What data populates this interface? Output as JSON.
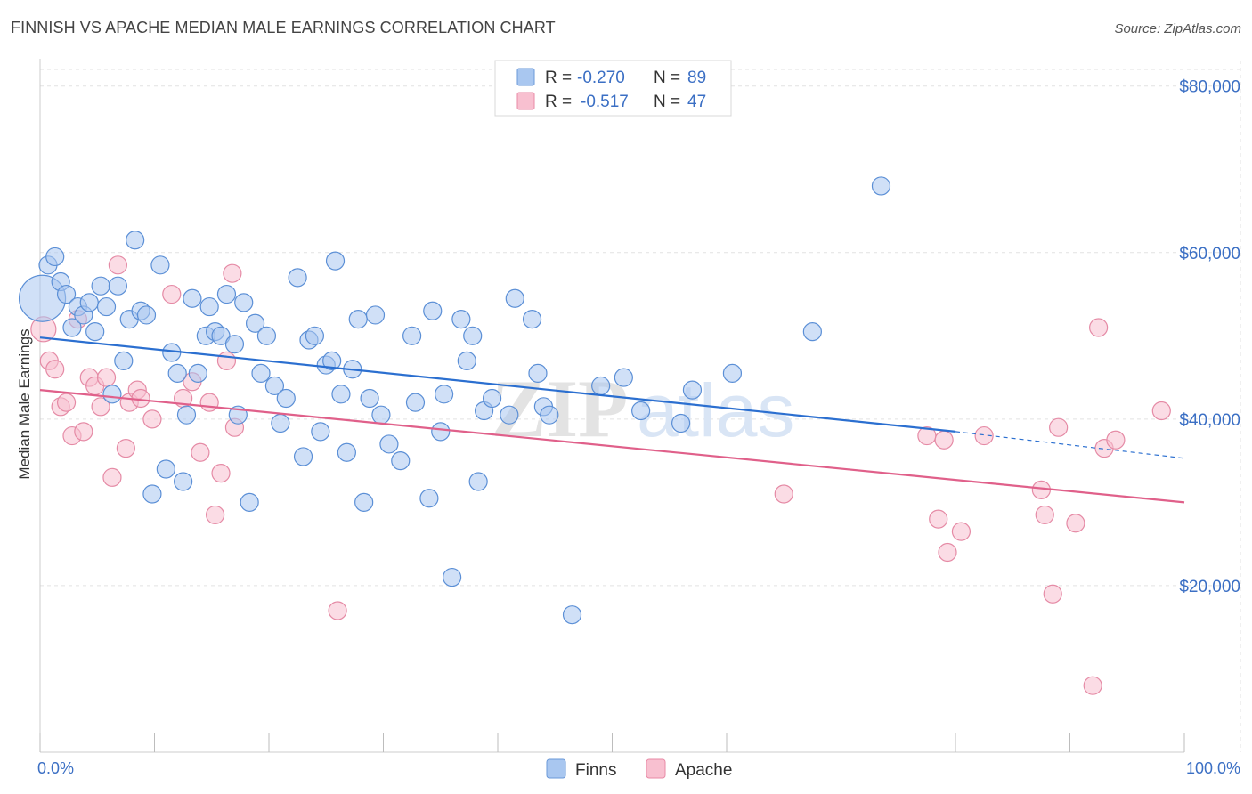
{
  "title": "FINNISH VS APACHE MEDIAN MALE EARNINGS CORRELATION CHART",
  "source": "Source: ZipAtlas.com",
  "watermark": {
    "zip": "ZIP",
    "atlas": "atlas"
  },
  "legend": {
    "rows": [
      {
        "r_label": "R =",
        "r_value": "-0.270",
        "n_label": "N =",
        "n_value": "89",
        "color": "#a9c7f0",
        "stroke": "#6a98d8"
      },
      {
        "r_label": "R =",
        "r_value": "-0.517",
        "n_label": "N =",
        "n_value": "47",
        "color": "#f8c0d0",
        "stroke": "#e88aa6"
      }
    ]
  },
  "colors": {
    "finns_fill": "#a9c7f0",
    "finns_stroke": "#5b8fd6",
    "finns_line": "#2b6fd0",
    "apache_fill": "#f8c0d0",
    "apache_stroke": "#e58aa5",
    "apache_line": "#e0608a",
    "grid": "#e2e2e2",
    "axis_label": "#3b6fc4"
  },
  "chart_data": {
    "type": "scatter",
    "title": "FINNISH VS APACHE MEDIAN MALE EARNINGS CORRELATION CHART",
    "xlabel": "",
    "ylabel": "Median Male Earnings",
    "xlim": [
      0,
      100
    ],
    "ylim": [
      0,
      82000
    ],
    "x_tick_labels": [
      "0.0%",
      "100.0%"
    ],
    "y_ticks": [
      20000,
      40000,
      60000,
      80000
    ],
    "y_tick_labels": [
      "$20,000",
      "$40,000",
      "$60,000",
      "$80,000"
    ],
    "grid": true,
    "legend_position": "top-center",
    "series": [
      {
        "name": "Finns",
        "r": -0.27,
        "n": 89,
        "trend": {
          "x0": 0,
          "y0": 49800,
          "x1": 80,
          "y1": 38500,
          "dashed_to_x": 100,
          "dashed_to_y": 35300
        },
        "points": [
          [
            0.2,
            54500,
            26
          ],
          [
            0.7,
            58500,
            10
          ],
          [
            1.3,
            59500,
            10
          ],
          [
            1.8,
            56500,
            10
          ],
          [
            2.3,
            55000,
            10
          ],
          [
            2.8,
            51000,
            10
          ],
          [
            3.3,
            53500,
            10
          ],
          [
            3.8,
            52500,
            10
          ],
          [
            4.3,
            54000,
            10
          ],
          [
            4.8,
            50500,
            10
          ],
          [
            5.3,
            56000,
            10
          ],
          [
            5.8,
            53500,
            10
          ],
          [
            6.3,
            43000,
            10
          ],
          [
            6.8,
            56000,
            10
          ],
          [
            7.3,
            47000,
            10
          ],
          [
            7.8,
            52000,
            10
          ],
          [
            8.3,
            61500,
            10
          ],
          [
            8.8,
            53000,
            10
          ],
          [
            9.3,
            52500,
            10
          ],
          [
            9.8,
            31000,
            10
          ],
          [
            10.5,
            58500,
            10
          ],
          [
            11.0,
            34000,
            10
          ],
          [
            11.5,
            48000,
            10
          ],
          [
            12.0,
            45500,
            10
          ],
          [
            12.5,
            32500,
            10
          ],
          [
            12.8,
            40500,
            10
          ],
          [
            13.3,
            54500,
            10
          ],
          [
            13.8,
            45500,
            10
          ],
          [
            14.5,
            50000,
            10
          ],
          [
            14.8,
            53500,
            10
          ],
          [
            15.3,
            50500,
            10
          ],
          [
            15.8,
            50000,
            10
          ],
          [
            16.3,
            55000,
            10
          ],
          [
            17.0,
            49000,
            10
          ],
          [
            17.3,
            40500,
            10
          ],
          [
            17.8,
            54000,
            10
          ],
          [
            18.3,
            30000,
            10
          ],
          [
            18.8,
            51500,
            10
          ],
          [
            19.3,
            45500,
            10
          ],
          [
            19.8,
            50000,
            10
          ],
          [
            20.5,
            44000,
            10
          ],
          [
            21.0,
            39500,
            10
          ],
          [
            21.5,
            42500,
            10
          ],
          [
            22.5,
            57000,
            10
          ],
          [
            23.0,
            35500,
            10
          ],
          [
            23.5,
            49500,
            10
          ],
          [
            24.0,
            50000,
            10
          ],
          [
            24.5,
            38500,
            10
          ],
          [
            25.0,
            46500,
            10
          ],
          [
            25.5,
            47000,
            10
          ],
          [
            25.8,
            59000,
            10
          ],
          [
            26.3,
            43000,
            10
          ],
          [
            26.8,
            36000,
            10
          ],
          [
            27.3,
            46000,
            10
          ],
          [
            27.8,
            52000,
            10
          ],
          [
            28.3,
            30000,
            10
          ],
          [
            28.8,
            42500,
            10
          ],
          [
            29.3,
            52500,
            10
          ],
          [
            29.8,
            40500,
            10
          ],
          [
            30.5,
            37000,
            10
          ],
          [
            31.5,
            35000,
            10
          ],
          [
            32.5,
            50000,
            10
          ],
          [
            32.8,
            42000,
            10
          ],
          [
            34.0,
            30500,
            10
          ],
          [
            34.3,
            53000,
            10
          ],
          [
            35.0,
            38500,
            10
          ],
          [
            35.3,
            43000,
            10
          ],
          [
            36.0,
            21000,
            10
          ],
          [
            36.8,
            52000,
            10
          ],
          [
            37.3,
            47000,
            10
          ],
          [
            37.8,
            50000,
            10
          ],
          [
            38.3,
            32500,
            10
          ],
          [
            38.8,
            41000,
            10
          ],
          [
            39.5,
            42500,
            10
          ],
          [
            41.0,
            40500,
            10
          ],
          [
            41.5,
            54500,
            10
          ],
          [
            43.0,
            52000,
            10
          ],
          [
            43.5,
            45500,
            10
          ],
          [
            44.0,
            41500,
            10
          ],
          [
            44.5,
            40500,
            10
          ],
          [
            46.5,
            16500,
            10
          ],
          [
            49.0,
            44000,
            10
          ],
          [
            51.0,
            45000,
            10
          ],
          [
            52.5,
            41000,
            10
          ],
          [
            56.0,
            39500,
            10
          ],
          [
            57.0,
            43500,
            10
          ],
          [
            60.5,
            45500,
            10
          ],
          [
            67.5,
            50500,
            10
          ],
          [
            73.5,
            68000,
            10
          ]
        ]
      },
      {
        "name": "Apache",
        "r": -0.517,
        "n": 47,
        "trend": {
          "x0": 0,
          "y0": 43500,
          "x1": 100,
          "y1": 30000
        },
        "points": [
          [
            0.3,
            50800,
            14
          ],
          [
            0.8,
            47000,
            10
          ],
          [
            1.3,
            46000,
            10
          ],
          [
            1.8,
            41500,
            10
          ],
          [
            2.3,
            42000,
            10
          ],
          [
            2.8,
            38000,
            10
          ],
          [
            3.3,
            52000,
            10
          ],
          [
            3.8,
            38500,
            10
          ],
          [
            4.3,
            45000,
            10
          ],
          [
            4.8,
            44000,
            10
          ],
          [
            5.3,
            41500,
            10
          ],
          [
            5.8,
            45000,
            10
          ],
          [
            6.3,
            33000,
            10
          ],
          [
            6.8,
            58500,
            10
          ],
          [
            7.5,
            36500,
            10
          ],
          [
            7.8,
            42000,
            10
          ],
          [
            8.5,
            43500,
            10
          ],
          [
            8.8,
            42500,
            10
          ],
          [
            9.8,
            40000,
            10
          ],
          [
            11.5,
            55000,
            10
          ],
          [
            12.5,
            42500,
            10
          ],
          [
            13.3,
            44500,
            10
          ],
          [
            14.0,
            36000,
            10
          ],
          [
            14.8,
            42000,
            10
          ],
          [
            15.3,
            28500,
            10
          ],
          [
            15.8,
            33500,
            10
          ],
          [
            16.3,
            47000,
            10
          ],
          [
            16.8,
            57500,
            10
          ],
          [
            17.0,
            39000,
            10
          ],
          [
            26.0,
            17000,
            10
          ],
          [
            65.0,
            31000,
            10
          ],
          [
            77.5,
            38000,
            10
          ],
          [
            78.5,
            28000,
            10
          ],
          [
            79.0,
            37500,
            10
          ],
          [
            79.3,
            24000,
            10
          ],
          [
            80.5,
            26500,
            10
          ],
          [
            82.5,
            38000,
            10
          ],
          [
            87.5,
            31500,
            10
          ],
          [
            87.8,
            28500,
            10
          ],
          [
            88.5,
            19000,
            10
          ],
          [
            89.0,
            39000,
            10
          ],
          [
            90.5,
            27500,
            10
          ],
          [
            92.0,
            8000,
            10
          ],
          [
            92.5,
            51000,
            10
          ],
          [
            93.0,
            36500,
            10
          ],
          [
            94.0,
            37500,
            10
          ],
          [
            98.0,
            41000,
            10
          ]
        ]
      }
    ]
  }
}
